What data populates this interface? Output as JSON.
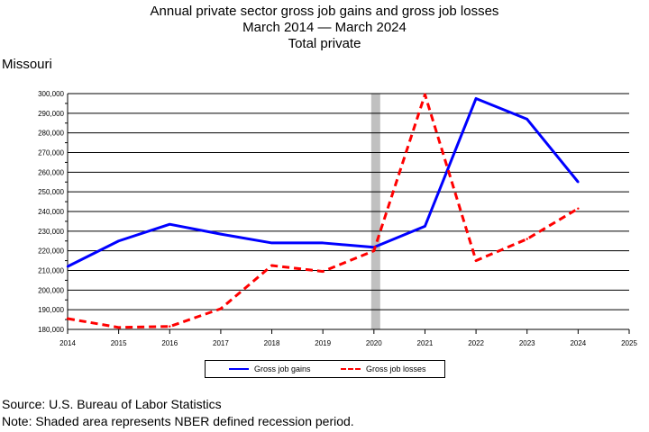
{
  "titles": {
    "line1": "Annual private sector gross job gains and gross job losses",
    "line2": "March 2014 — March 2024",
    "line3": "Total private"
  },
  "region": "Missouri",
  "footer": {
    "source": "Source: U.S. Bureau of Labor Statistics",
    "note": "Note: Shaded area represents NBER defined recession period."
  },
  "chart_data": {
    "type": "line",
    "x": [
      2014,
      2015,
      2016,
      2017,
      2018,
      2019,
      2020,
      2021,
      2022,
      2023,
      2024
    ],
    "x_ticks": [
      "2014",
      "2015",
      "2016",
      "2017",
      "2018",
      "2019",
      "2020",
      "2021",
      "2022",
      "2023",
      "2024",
      "2025"
    ],
    "xlim": [
      2014,
      2025
    ],
    "ylim": [
      180000,
      300000
    ],
    "y_ticks": [
      "180,000",
      "190,000",
      "200,000",
      "210,000",
      "220,000",
      "230,000",
      "240,000",
      "250,000",
      "260,000",
      "270,000",
      "280,000",
      "290,000",
      "300,000"
    ],
    "recession": [
      2020,
      2020.1
    ],
    "grid": "horizontal",
    "legend_position": "bottom",
    "series": [
      {
        "name": "Gross job gains",
        "color": "#0000ff",
        "style": "solid",
        "values": [
          212000,
          225000,
          233500,
          228500,
          224000,
          224000,
          221800,
          232500,
          297500,
          287000,
          255000
        ]
      },
      {
        "name": "Gross job losses",
        "color": "#ff0000",
        "style": "dashed",
        "values": [
          185500,
          181000,
          181500,
          190500,
          212500,
          209500,
          220000,
          299500,
          215000,
          226000,
          241500
        ]
      }
    ],
    "recession_color": "#c0c0c0",
    "grid_color": "#000000"
  }
}
